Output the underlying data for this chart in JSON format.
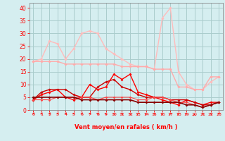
{
  "x": [
    0,
    1,
    2,
    3,
    4,
    5,
    6,
    7,
    8,
    9,
    10,
    11,
    12,
    13,
    14,
    15,
    16,
    17,
    18,
    19,
    20,
    21,
    22,
    23
  ],
  "line1": [
    19,
    19,
    19,
    19,
    18,
    18,
    18,
    18,
    18,
    18,
    18,
    17,
    17,
    17,
    17,
    16,
    16,
    16,
    9,
    9,
    8,
    8,
    13,
    13
  ],
  "line2": [
    4,
    6,
    7,
    8,
    5,
    4,
    5,
    10,
    8,
    9,
    14,
    12,
    14,
    7,
    6,
    5,
    4,
    3,
    2,
    4,
    3,
    2,
    3,
    3
  ],
  "line3": [
    4,
    7,
    8,
    8,
    8,
    6,
    5,
    5,
    9,
    11,
    12,
    9,
    8,
    6,
    5,
    5,
    5,
    4,
    4,
    4,
    3,
    2,
    2,
    3
  ],
  "line4": [
    5,
    5,
    5,
    5,
    5,
    5,
    4,
    4,
    4,
    4,
    4,
    4,
    4,
    3,
    3,
    3,
    3,
    3,
    3,
    2,
    2,
    1,
    2,
    3
  ],
  "line5": [
    4,
    4,
    4,
    5,
    5,
    5,
    5,
    5,
    4,
    5,
    5,
    5,
    5,
    4,
    4,
    5,
    5,
    4,
    3,
    3,
    2,
    1,
    2,
    3
  ],
  "line6": [
    19,
    20,
    27,
    26,
    20,
    24,
    30,
    31,
    30,
    24,
    22,
    20,
    18,
    17,
    17,
    16,
    36,
    40,
    15,
    10,
    8,
    8,
    11,
    13
  ],
  "bg_color": "#d5eef0",
  "grid_color": "#aacccc",
  "line1_color": "#ffaaaa",
  "line2_color": "#ff0000",
  "line3_color": "#cc0000",
  "line4_color": "#880000",
  "line5_color": "#ff4444",
  "line6_color": "#ffbbbb",
  "xlabel": "Vent moyen/en rafales ( km/h )",
  "ylim": [
    0,
    42
  ],
  "xlim": [
    -0.5,
    23.5
  ],
  "yticks": [
    0,
    5,
    10,
    15,
    20,
    25,
    30,
    35,
    40
  ],
  "xticks": [
    0,
    1,
    2,
    3,
    4,
    5,
    6,
    7,
    8,
    9,
    10,
    11,
    12,
    13,
    14,
    15,
    16,
    17,
    18,
    19,
    20,
    21,
    22,
    23
  ]
}
